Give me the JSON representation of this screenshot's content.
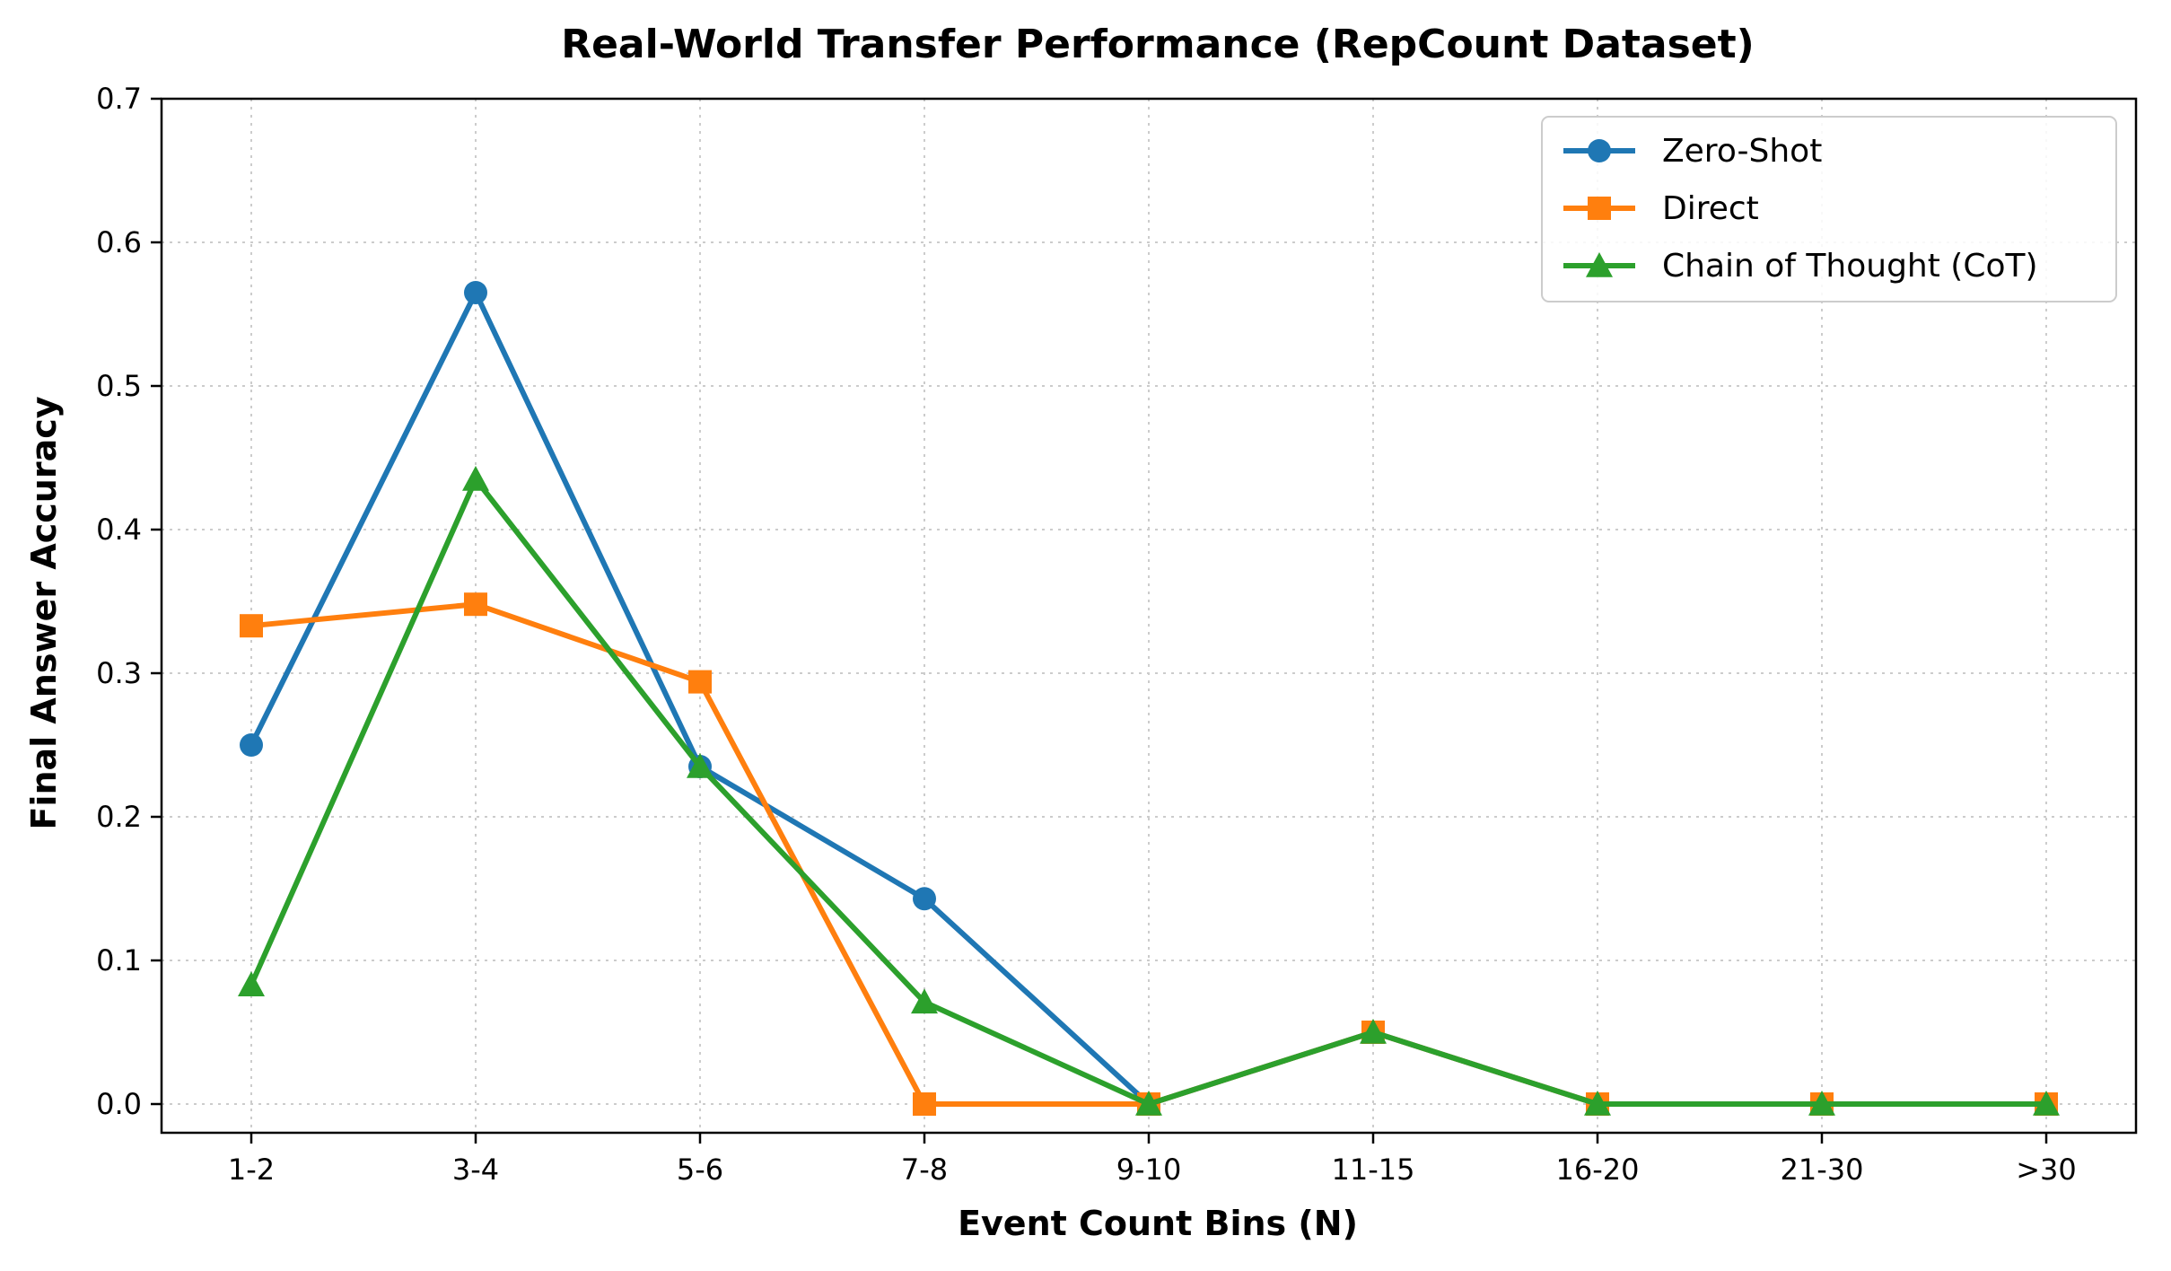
{
  "chart_data": {
    "type": "line",
    "title": "Real-World Transfer Performance (RepCount Dataset)",
    "xlabel": "Event Count Bins (N)",
    "ylabel": "Final Answer Accuracy",
    "categories": [
      "1-2",
      "3-4",
      "5-6",
      "7-8",
      "9-10",
      "11-15",
      "16-20",
      "21-30",
      ">30"
    ],
    "ylim": [
      -0.02,
      0.7
    ],
    "yticks": [
      0.0,
      0.1,
      0.2,
      0.3,
      0.4,
      0.5,
      0.6,
      0.7
    ],
    "ytick_labels": [
      "0.0",
      "0.1",
      "0.2",
      "0.3",
      "0.4",
      "0.5",
      "0.6",
      "0.7"
    ],
    "grid": true,
    "legend_position": "top-right",
    "series": [
      {
        "name": "Zero-Shot",
        "color": "#1f77b4",
        "marker": "circle",
        "values": [
          0.25,
          0.565,
          0.235,
          0.143,
          0.0,
          0.05,
          0.0,
          0.0,
          0.0
        ]
      },
      {
        "name": "Direct",
        "color": "#ff7f0e",
        "marker": "square",
        "values": [
          0.333,
          0.348,
          0.294,
          0.0,
          0.0,
          0.05,
          0.0,
          0.0,
          0.0
        ]
      },
      {
        "name": "Chain of Thought (CoT)",
        "color": "#2ca02c",
        "marker": "triangle",
        "values": [
          0.083,
          0.435,
          0.235,
          0.071,
          0.0,
          0.05,
          0.0,
          0.0,
          0.0
        ]
      }
    ]
  }
}
